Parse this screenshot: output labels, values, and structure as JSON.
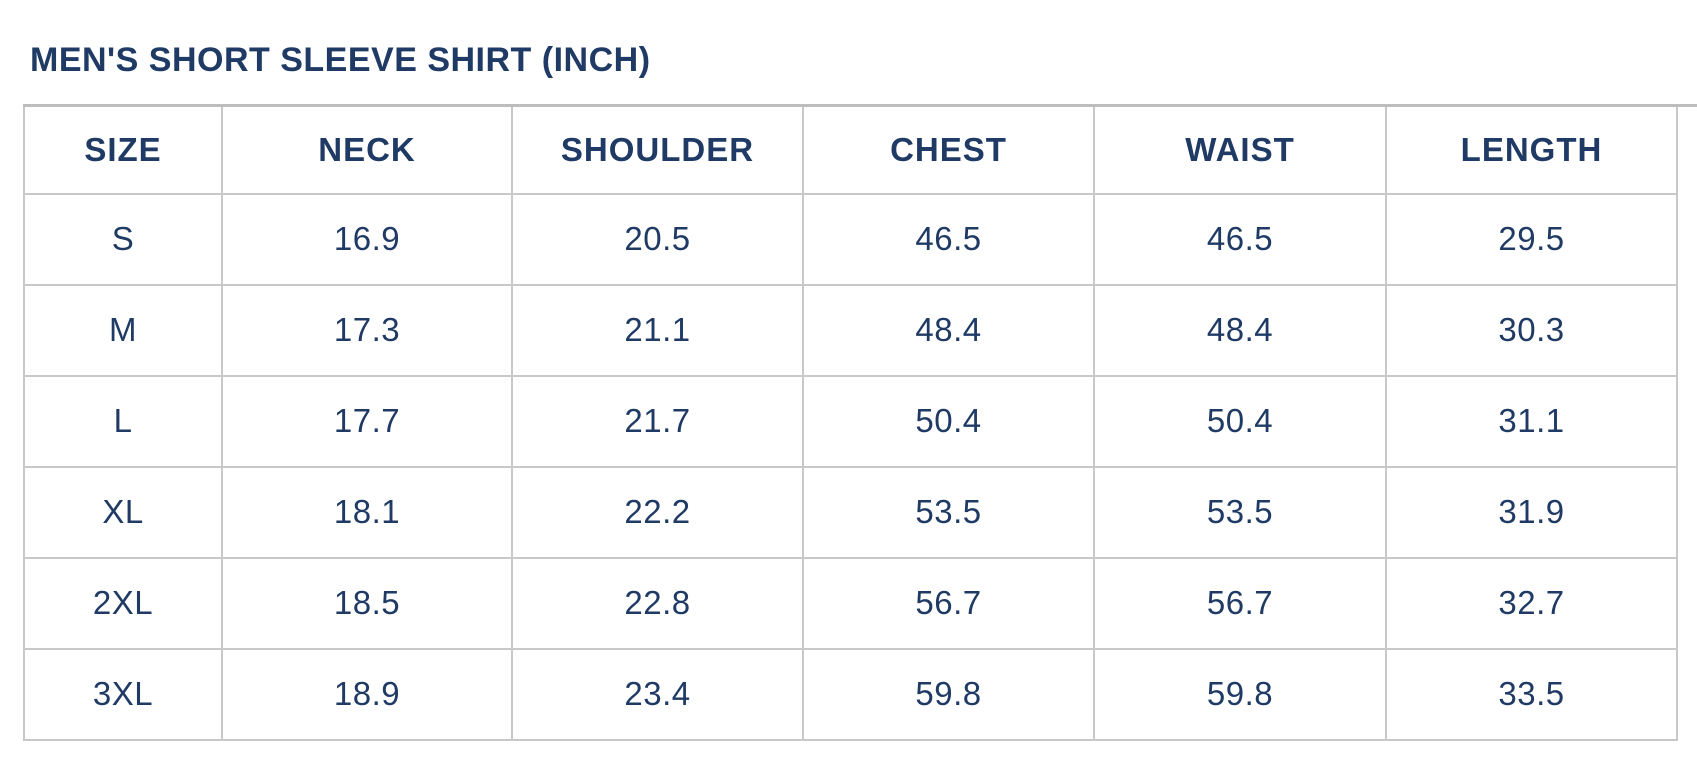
{
  "title": "MEN'S SHORT SLEEVE SHIRT (INCH)",
  "colors": {
    "text_navy": "#1f3a64",
    "border_gray": "#c8c8c8",
    "background": "#ffffff"
  },
  "table": {
    "columns": [
      "SIZE",
      "NECK",
      "SHOULDER",
      "CHEST",
      "WAIST",
      "LENGTH"
    ],
    "rows": [
      {
        "cells": [
          "S",
          "16.9",
          "20.5",
          "46.5",
          "46.5",
          "29.5"
        ]
      },
      {
        "cells": [
          "M",
          "17.3",
          "21.1",
          "48.4",
          "48.4",
          "30.3"
        ]
      },
      {
        "cells": [
          "L",
          "17.7",
          "21.7",
          "50.4",
          "50.4",
          "31.1"
        ]
      },
      {
        "cells": [
          "XL",
          "18.1",
          "22.2",
          "53.5",
          "53.5",
          "31.9"
        ]
      },
      {
        "cells": [
          "2XL",
          "18.5",
          "22.8",
          "56.7",
          "56.7",
          "32.7"
        ]
      },
      {
        "cells": [
          "3XL",
          "18.9",
          "23.4",
          "59.8",
          "59.8",
          "33.5"
        ]
      }
    ],
    "unit": "INCH"
  }
}
